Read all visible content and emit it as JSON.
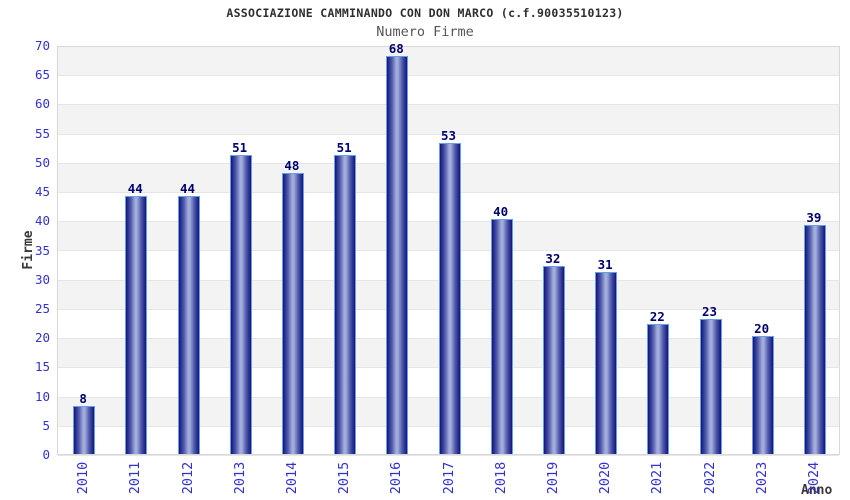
{
  "chart_data": {
    "type": "bar",
    "title": "ASSOCIAZIONE CAMMINANDO CON DON MARCO (c.f.90035510123)",
    "subtitle": "Numero Firme",
    "xlabel": "Anno",
    "ylabel": "Firme",
    "categories": [
      "2010",
      "2011",
      "2012",
      "2013",
      "2014",
      "2015",
      "2016",
      "2017",
      "2018",
      "2019",
      "2020",
      "2021",
      "2022",
      "2023",
      "2024"
    ],
    "values": [
      8,
      44,
      44,
      51,
      48,
      51,
      68,
      53,
      40,
      32,
      31,
      22,
      23,
      20,
      39
    ],
    "ylim": [
      0,
      70
    ],
    "ytick_step": 5,
    "yticks": [
      0,
      5,
      10,
      15,
      20,
      25,
      30,
      35,
      40,
      45,
      50,
      55,
      60,
      65,
      70
    ],
    "grid": "alternating horizontal bands every 5 units, gray band at top (65-70)",
    "legend": "none",
    "bar_value_labels": true,
    "x_tick_rotation": -90
  },
  "colors": {
    "background": "#ffffff",
    "band_gray": "#f3f3f3",
    "band_white": "#ffffff",
    "grid_line": "#e6e6e6",
    "plot_border": "#d8d8d8",
    "bar_edge": "#15157b",
    "bar_mid": "#4d58ab",
    "bar_center": "#a3addb",
    "bar_outline": "#64a0e8",
    "value_label": "#00006e",
    "tick_label": "#3232d0",
    "axis_title": "#3a3a3a",
    "title": "#2e2e2e",
    "subtitle": "#575757"
  }
}
